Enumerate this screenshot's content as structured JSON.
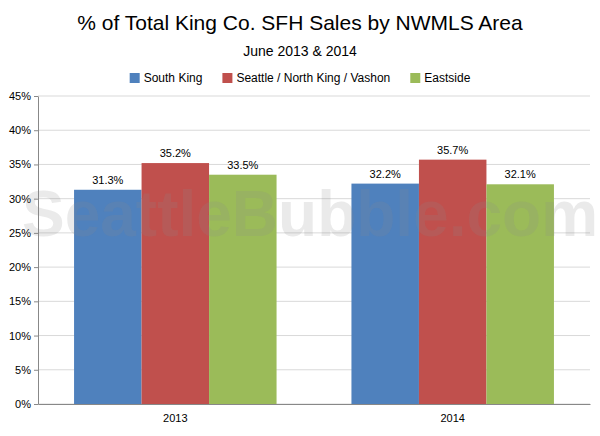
{
  "chart_data": {
    "type": "bar",
    "title": "% of Total King Co. SFH Sales by NWMLS Area",
    "subtitle": "June 2013 & 2014",
    "annotations": [
      "SeattleBubble.com"
    ],
    "categories": [
      "2013",
      "2014"
    ],
    "series": [
      {
        "name": "South King",
        "color": "#4f81bd",
        "values": [
          31.3,
          32.2
        ],
        "value_labels": [
          "31.3%",
          "32.2%"
        ]
      },
      {
        "name": "Seattle / North King / Vashon",
        "color": "#c0504d",
        "values": [
          35.2,
          35.7
        ],
        "value_labels": [
          "35.2%",
          "35.7%"
        ]
      },
      {
        "name": "Eastside",
        "color": "#9bbb59",
        "values": [
          33.5,
          32.1
        ],
        "value_labels": [
          "33.5%",
          "32.1%"
        ]
      }
    ],
    "ylim": [
      0,
      45
    ],
    "yticks": [
      {
        "value": 0,
        "label": "0%"
      },
      {
        "value": 5,
        "label": "5%"
      },
      {
        "value": 10,
        "label": "10%"
      },
      {
        "value": 15,
        "label": "15%"
      },
      {
        "value": 20,
        "label": "20%"
      },
      {
        "value": 25,
        "label": "25%"
      },
      {
        "value": 30,
        "label": "30%"
      },
      {
        "value": 35,
        "label": "35%"
      },
      {
        "value": 40,
        "label": "40%"
      },
      {
        "value": 45,
        "label": "45%"
      }
    ],
    "grid": true,
    "legend": "top",
    "data_labels": true
  }
}
